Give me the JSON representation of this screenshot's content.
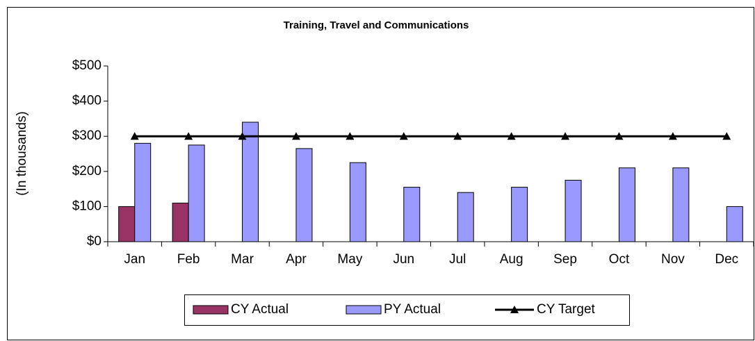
{
  "chart_data": {
    "type": "bar",
    "title": "Training, Travel and Communications",
    "y_label": "(In thousands)",
    "categories": [
      "Jan",
      "Feb",
      "Mar",
      "Apr",
      "May",
      "Jun",
      "Jul",
      "Aug",
      "Sep",
      "Oct",
      "Nov",
      "Dec"
    ],
    "series": [
      {
        "name": "CY Actual",
        "color": "#993366",
        "type": "bar",
        "values": [
          100,
          110,
          null,
          null,
          null,
          null,
          null,
          null,
          null,
          null,
          null,
          null
        ]
      },
      {
        "name": "PY Actual",
        "color": "#9999ff",
        "type": "bar",
        "values": [
          280,
          275,
          340,
          265,
          225,
          155,
          140,
          155,
          175,
          210,
          210,
          100
        ]
      },
      {
        "name": "CY Target",
        "color": "#000000",
        "type": "line",
        "values": [
          300,
          300,
          300,
          300,
          300,
          300,
          300,
          300,
          300,
          300,
          300,
          300
        ]
      }
    ],
    "ylim": [
      0,
      500
    ],
    "yticks": [
      {
        "value": 0,
        "label": "$0"
      },
      {
        "value": 100,
        "label": "$100"
      },
      {
        "value": 200,
        "label": "$200"
      },
      {
        "value": 300,
        "label": "$300"
      },
      {
        "value": 400,
        "label": "$400"
      },
      {
        "value": 500,
        "label": "$500"
      }
    ],
    "legend": "bottom"
  }
}
